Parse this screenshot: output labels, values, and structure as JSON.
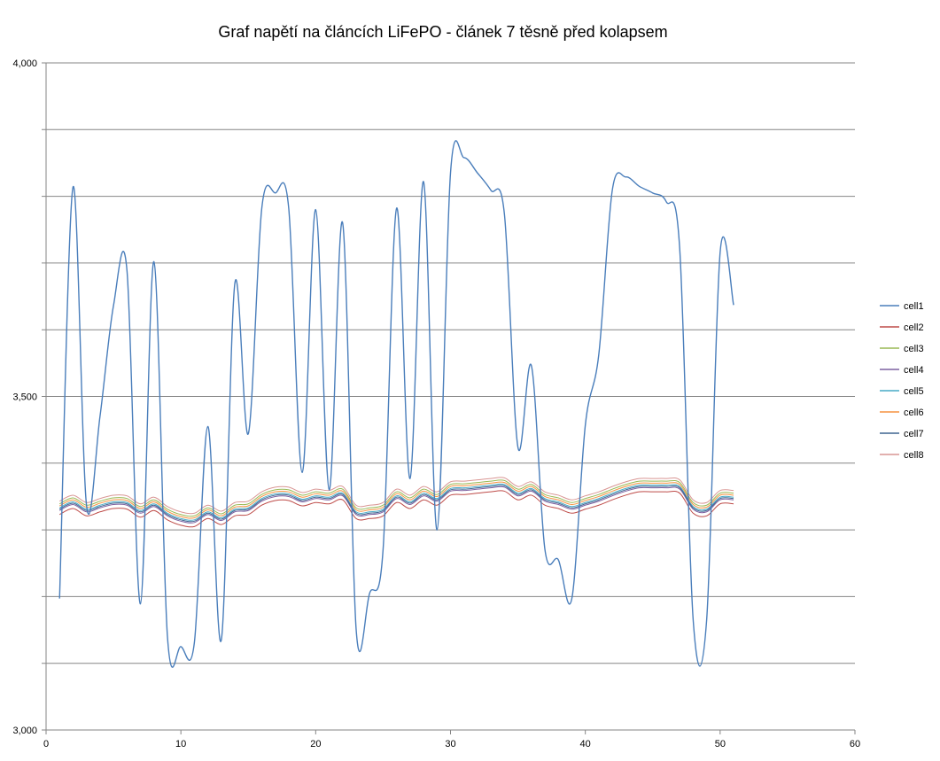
{
  "chart_data": {
    "type": "line",
    "title": "Graf napětí na článcích LiFePO - článek 7 těsně před  kolapsem",
    "xlabel": "",
    "ylabel": "",
    "xlim": [
      0,
      60
    ],
    "ylim": [
      3.0,
      4.0
    ],
    "x_ticks": [
      0,
      10,
      20,
      30,
      40,
      50,
      60
    ],
    "x_tick_labels": [
      "0",
      "10",
      "20",
      "30",
      "40",
      "50",
      "60"
    ],
    "y_ticks": [
      3.0,
      3.5,
      4.0
    ],
    "y_tick_labels": [
      "3,000",
      "3,500",
      "4,000"
    ],
    "y_gridline_step": 0.1,
    "grid": "horizontal",
    "smoothed": true,
    "legend_position": "right",
    "x": [
      1,
      2,
      3,
      4,
      5,
      6,
      7,
      8,
      9,
      10,
      11,
      12,
      13,
      14,
      15,
      16,
      17,
      18,
      19,
      20,
      21,
      22,
      23,
      24,
      25,
      26,
      27,
      28,
      29,
      30,
      31,
      32,
      33,
      34,
      35,
      36,
      37,
      38,
      39,
      40,
      41,
      42,
      43,
      44,
      45,
      46,
      47,
      48,
      49,
      50,
      51
    ],
    "series": [
      {
        "name": "cell1",
        "color": "#4A7EBB",
        "values": [
          3.197,
          3.814,
          3.337,
          3.47,
          3.636,
          3.689,
          3.189,
          3.702,
          3.141,
          3.125,
          3.131,
          3.455,
          3.135,
          3.669,
          3.444,
          3.782,
          3.805,
          3.782,
          3.386,
          3.78,
          3.36,
          3.76,
          3.151,
          3.205,
          3.271,
          3.782,
          3.377,
          3.822,
          3.3,
          3.835,
          3.858,
          3.835,
          3.809,
          3.773,
          3.424,
          3.546,
          3.271,
          3.255,
          3.197,
          3.457,
          3.563,
          3.809,
          3.829,
          3.815,
          3.805,
          3.792,
          3.722,
          3.165,
          3.165,
          3.716,
          3.637
        ]
      },
      {
        "name": "cell2",
        "color": "#BE4B48",
        "values": [
          3.323,
          3.332,
          3.321,
          3.327,
          3.332,
          3.331,
          3.319,
          3.329,
          3.315,
          3.307,
          3.305,
          3.317,
          3.308,
          3.321,
          3.323,
          3.337,
          3.344,
          3.344,
          3.336,
          3.341,
          3.339,
          3.345,
          3.317,
          3.317,
          3.321,
          3.341,
          3.332,
          3.345,
          3.337,
          3.352,
          3.353,
          3.355,
          3.357,
          3.358,
          3.345,
          3.352,
          3.337,
          3.332,
          3.325,
          3.331,
          3.337,
          3.345,
          3.352,
          3.357,
          3.357,
          3.357,
          3.355,
          3.325,
          3.321,
          3.339,
          3.339
        ]
      },
      {
        "name": "cell3",
        "color": "#98B954",
        "values": [
          3.339,
          3.348,
          3.337,
          3.343,
          3.348,
          3.347,
          3.335,
          3.345,
          3.331,
          3.323,
          3.321,
          3.333,
          3.324,
          3.337,
          3.339,
          3.353,
          3.36,
          3.36,
          3.352,
          3.357,
          3.355,
          3.361,
          3.333,
          3.333,
          3.337,
          3.357,
          3.348,
          3.361,
          3.353,
          3.368,
          3.369,
          3.371,
          3.373,
          3.374,
          3.361,
          3.368,
          3.353,
          3.348,
          3.341,
          3.347,
          3.353,
          3.361,
          3.368,
          3.373,
          3.373,
          3.373,
          3.371,
          3.341,
          3.337,
          3.355,
          3.355
        ]
      },
      {
        "name": "cell4",
        "color": "#7D60A0",
        "values": [
          3.329,
          3.338,
          3.327,
          3.333,
          3.338,
          3.337,
          3.325,
          3.335,
          3.321,
          3.313,
          3.311,
          3.323,
          3.314,
          3.327,
          3.329,
          3.343,
          3.35,
          3.35,
          3.342,
          3.347,
          3.345,
          3.351,
          3.323,
          3.323,
          3.327,
          3.347,
          3.338,
          3.351,
          3.343,
          3.358,
          3.359,
          3.361,
          3.363,
          3.364,
          3.351,
          3.358,
          3.343,
          3.338,
          3.331,
          3.337,
          3.343,
          3.351,
          3.358,
          3.363,
          3.363,
          3.363,
          3.361,
          3.331,
          3.327,
          3.345,
          3.345
        ]
      },
      {
        "name": "cell5",
        "color": "#46AAC5",
        "values": [
          3.333,
          3.342,
          3.331,
          3.337,
          3.342,
          3.341,
          3.329,
          3.339,
          3.325,
          3.317,
          3.315,
          3.327,
          3.318,
          3.331,
          3.333,
          3.347,
          3.354,
          3.354,
          3.346,
          3.351,
          3.349,
          3.355,
          3.327,
          3.327,
          3.331,
          3.351,
          3.342,
          3.355,
          3.347,
          3.362,
          3.363,
          3.365,
          3.367,
          3.368,
          3.355,
          3.362,
          3.347,
          3.342,
          3.335,
          3.341,
          3.347,
          3.355,
          3.362,
          3.367,
          3.367,
          3.367,
          3.365,
          3.335,
          3.331,
          3.349,
          3.349
        ]
      },
      {
        "name": "cell6",
        "color": "#F69240",
        "values": [
          3.336,
          3.345,
          3.334,
          3.34,
          3.345,
          3.344,
          3.332,
          3.342,
          3.328,
          3.32,
          3.318,
          3.33,
          3.321,
          3.334,
          3.336,
          3.35,
          3.357,
          3.357,
          3.349,
          3.354,
          3.352,
          3.358,
          3.33,
          3.33,
          3.334,
          3.354,
          3.345,
          3.358,
          3.35,
          3.365,
          3.366,
          3.368,
          3.37,
          3.371,
          3.358,
          3.365,
          3.35,
          3.345,
          3.338,
          3.344,
          3.35,
          3.358,
          3.365,
          3.37,
          3.37,
          3.37,
          3.368,
          3.338,
          3.334,
          3.352,
          3.352
        ]
      },
      {
        "name": "cell7",
        "color": "#3F6591",
        "values": [
          3.331,
          3.34,
          3.329,
          3.335,
          3.34,
          3.339,
          3.327,
          3.337,
          3.323,
          3.315,
          3.313,
          3.325,
          3.316,
          3.329,
          3.331,
          3.345,
          3.352,
          3.352,
          3.344,
          3.349,
          3.347,
          3.353,
          3.325,
          3.325,
          3.329,
          3.349,
          3.34,
          3.353,
          3.345,
          3.36,
          3.361,
          3.363,
          3.365,
          3.366,
          3.353,
          3.36,
          3.345,
          3.34,
          3.333,
          3.339,
          3.345,
          3.353,
          3.36,
          3.365,
          3.365,
          3.365,
          3.363,
          3.333,
          3.329,
          3.347,
          3.347
        ]
      },
      {
        "name": "cell8",
        "color": "#D99694",
        "values": [
          3.343,
          3.352,
          3.341,
          3.347,
          3.352,
          3.351,
          3.339,
          3.349,
          3.335,
          3.327,
          3.325,
          3.337,
          3.328,
          3.341,
          3.343,
          3.357,
          3.364,
          3.364,
          3.356,
          3.361,
          3.359,
          3.365,
          3.337,
          3.337,
          3.341,
          3.361,
          3.352,
          3.365,
          3.357,
          3.372,
          3.373,
          3.375,
          3.377,
          3.378,
          3.365,
          3.372,
          3.357,
          3.352,
          3.345,
          3.351,
          3.357,
          3.365,
          3.372,
          3.377,
          3.377,
          3.377,
          3.375,
          3.345,
          3.341,
          3.359,
          3.359
        ]
      }
    ]
  }
}
